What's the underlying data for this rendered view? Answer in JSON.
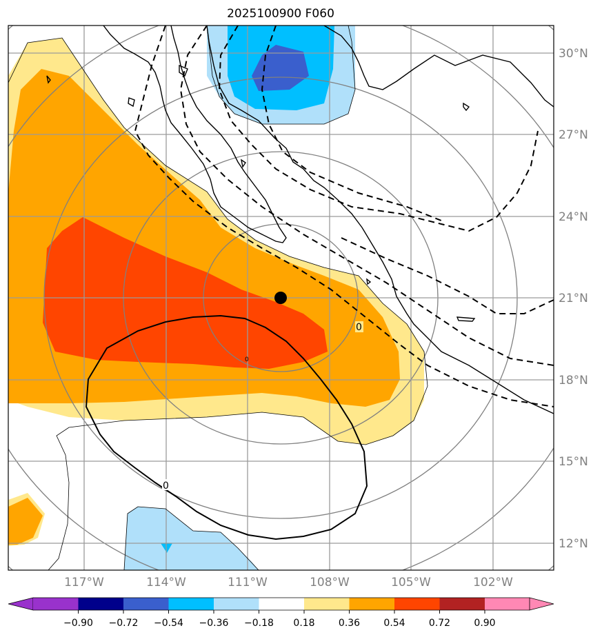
{
  "title": "2025100900 F060",
  "colors": {
    "purple": "#9932cc",
    "navy": "#00008b",
    "royal": "#3a5fcd",
    "sky": "#00bfff",
    "lightsky": "#b0e0fa",
    "white": "#ffffff",
    "lightyellow": "#ffe88c",
    "orange": "#ffa500",
    "orangered": "#ff4500",
    "firebrick": "#b22222",
    "pink": "#ff88b4",
    "grid": "#9a9a9a",
    "range_rings": "#808080",
    "contour": "#000000"
  },
  "map": {
    "lat_labels": [
      "30°N",
      "27°N",
      "24°N",
      "21°N",
      "18°N",
      "15°N",
      "12°N"
    ],
    "lon_labels": [
      "117°W",
      "114°W",
      "111°W",
      "108°W",
      "105°W",
      "102°W"
    ],
    "center_marker": "storm-center-dot",
    "contour_labels": [
      "0",
      "0",
      "0"
    ]
  },
  "colorbar": {
    "labels": [
      "−0.90",
      "−0.72",
      "−0.54",
      "−0.36",
      "−0.18",
      "0.18",
      "0.36",
      "0.54",
      "0.72",
      "0.90"
    ]
  }
}
